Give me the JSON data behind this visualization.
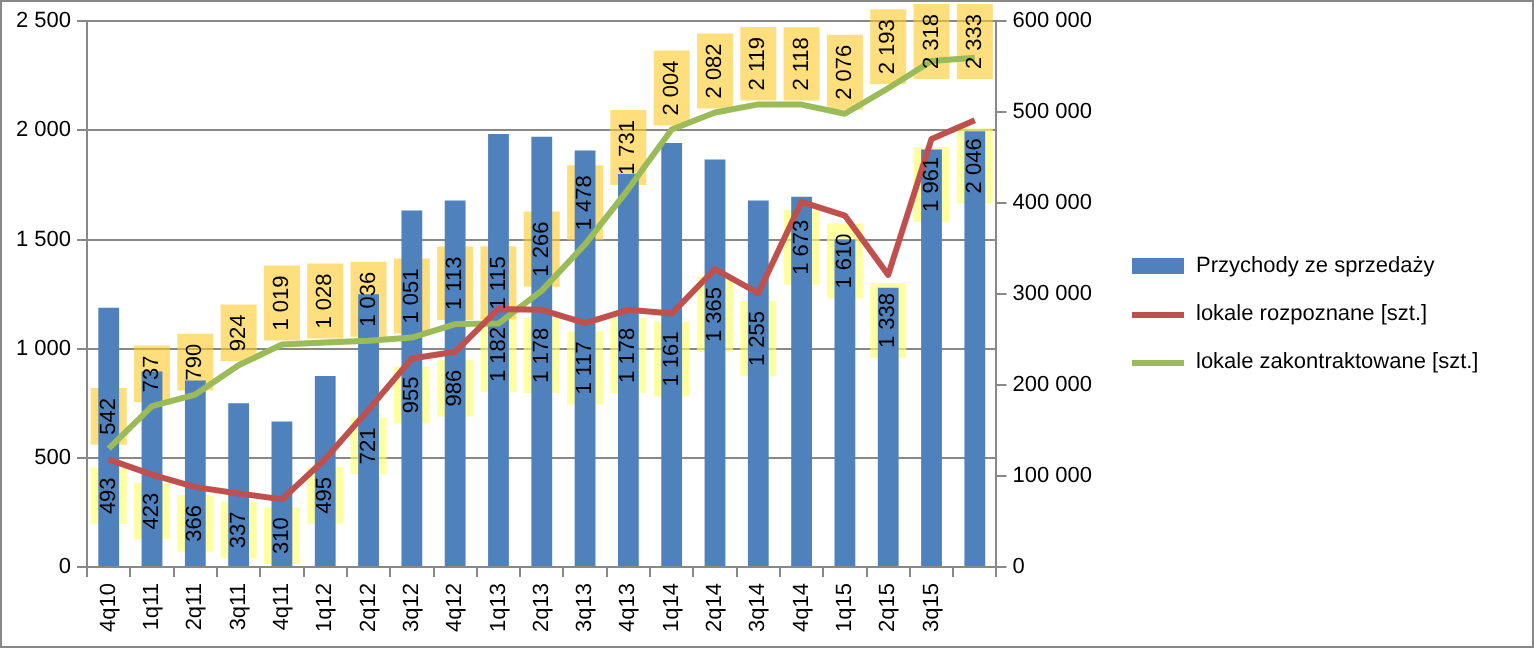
{
  "chart_data": {
    "type": "bar",
    "categories": [
      "4q10",
      "1q11",
      "2q11",
      "3q11",
      "4q11",
      "1q12",
      "2q12",
      "3q12",
      "4q12",
      "1q13",
      "2q13",
      "3q13",
      "4q13",
      "1q14",
      "2q14",
      "3q14",
      "4q14",
      "1q15",
      "2q15",
      "3q15",
      null
    ],
    "series": [
      {
        "name": "Przychody ze sprzedaży",
        "axis": "y2",
        "color": "#4f81bd",
        "values": [
          285000,
          215000,
          205000,
          180000,
          160000,
          210000,
          300000,
          392000,
          403000,
          476000,
          473000,
          458000,
          432000,
          466000,
          448000,
          403000,
          407000,
          360000,
          307000,
          459000,
          479000
        ]
      },
      {
        "name": "lokale rozpoznane  [szt.]",
        "type": "line",
        "color": "#c0504d",
        "values": [
          493,
          423,
          366,
          337,
          310,
          495,
          721,
          955,
          986,
          1182,
          1178,
          1117,
          1178,
          1161,
          1365,
          1255,
          1673,
          1610,
          1338,
          1961,
          2046
        ],
        "value_labels": [
          "493",
          "423",
          "366",
          "337",
          "310",
          "495",
          "721",
          "955",
          "986",
          "1 182",
          "1 178",
          "1 117",
          "1 178",
          "1 161",
          "1 365",
          "1 255",
          "1 673",
          "1 610",
          "1 338",
          "1 961",
          "2 046"
        ]
      },
      {
        "name": "lokale zakontraktowane  [szt.]",
        "type": "line",
        "color": "#9bbb59",
        "values": [
          542,
          737,
          790,
          924,
          1019,
          1028,
          1036,
          1051,
          1113,
          1115,
          1266,
          1478,
          1731,
          2004,
          2082,
          2119,
          2118,
          2076,
          2193,
          2318,
          2333
        ],
        "value_labels": [
          "542",
          "737",
          "790",
          "924",
          "1 019",
          "1 028",
          "1 036",
          "1 051",
          "1 113",
          "1 115",
          "1 266",
          "1 478",
          "1 731",
          "2 004",
          "2 082",
          "2 119",
          "2 118",
          "2 076",
          "2 193",
          "2 318",
          "2 333"
        ]
      }
    ],
    "ylim": [
      0,
      2500
    ],
    "yticks": [
      0,
      500,
      {
        "value": 1000,
        "label": "1 000"
      },
      {
        "value": 1500,
        "label": "1 500"
      },
      {
        "value": 2000,
        "label": "2 000"
      },
      {
        "value": 2500,
        "label": "2 500"
      }
    ],
    "y2lim": [
      0,
      600000
    ],
    "y2ticks": [
      0,
      {
        "value": 100000,
        "label": "100 000"
      },
      {
        "value": 200000,
        "label": "200 000"
      },
      {
        "value": 300000,
        "label": "300 000"
      },
      {
        "value": 400000,
        "label": "400 000"
      },
      {
        "value": 500000,
        "label": "500 000"
      },
      {
        "value": 600000,
        "label": "600 000"
      }
    ],
    "grid": "y",
    "legend": "right",
    "marker": "none"
  }
}
